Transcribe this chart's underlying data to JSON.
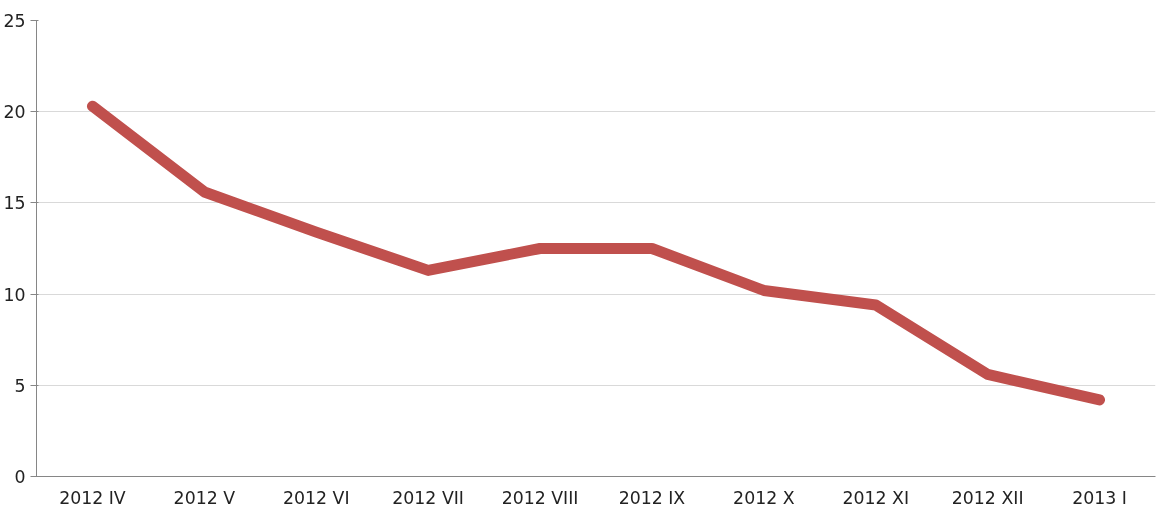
{
  "chart_data": {
    "type": "line",
    "categories": [
      "2012 IV",
      "2012 V",
      "2012 VI",
      "2012 VII",
      "2012 VIII",
      "2012 IX",
      "2012 X",
      "2012 XI",
      "2012 XII",
      "2013 I"
    ],
    "series": [
      {
        "color": "#c0504d",
        "values": [
          20.3,
          15.6,
          13.4,
          11.3,
          12.5,
          12.5,
          10.2,
          9.4,
          5.6,
          4.2
        ]
      }
    ],
    "ylim": [
      0,
      25
    ],
    "yticks": [
      0,
      5,
      10,
      15,
      20,
      25
    ],
    "grid": "y",
    "marker": "none",
    "line_style": "solid"
  }
}
